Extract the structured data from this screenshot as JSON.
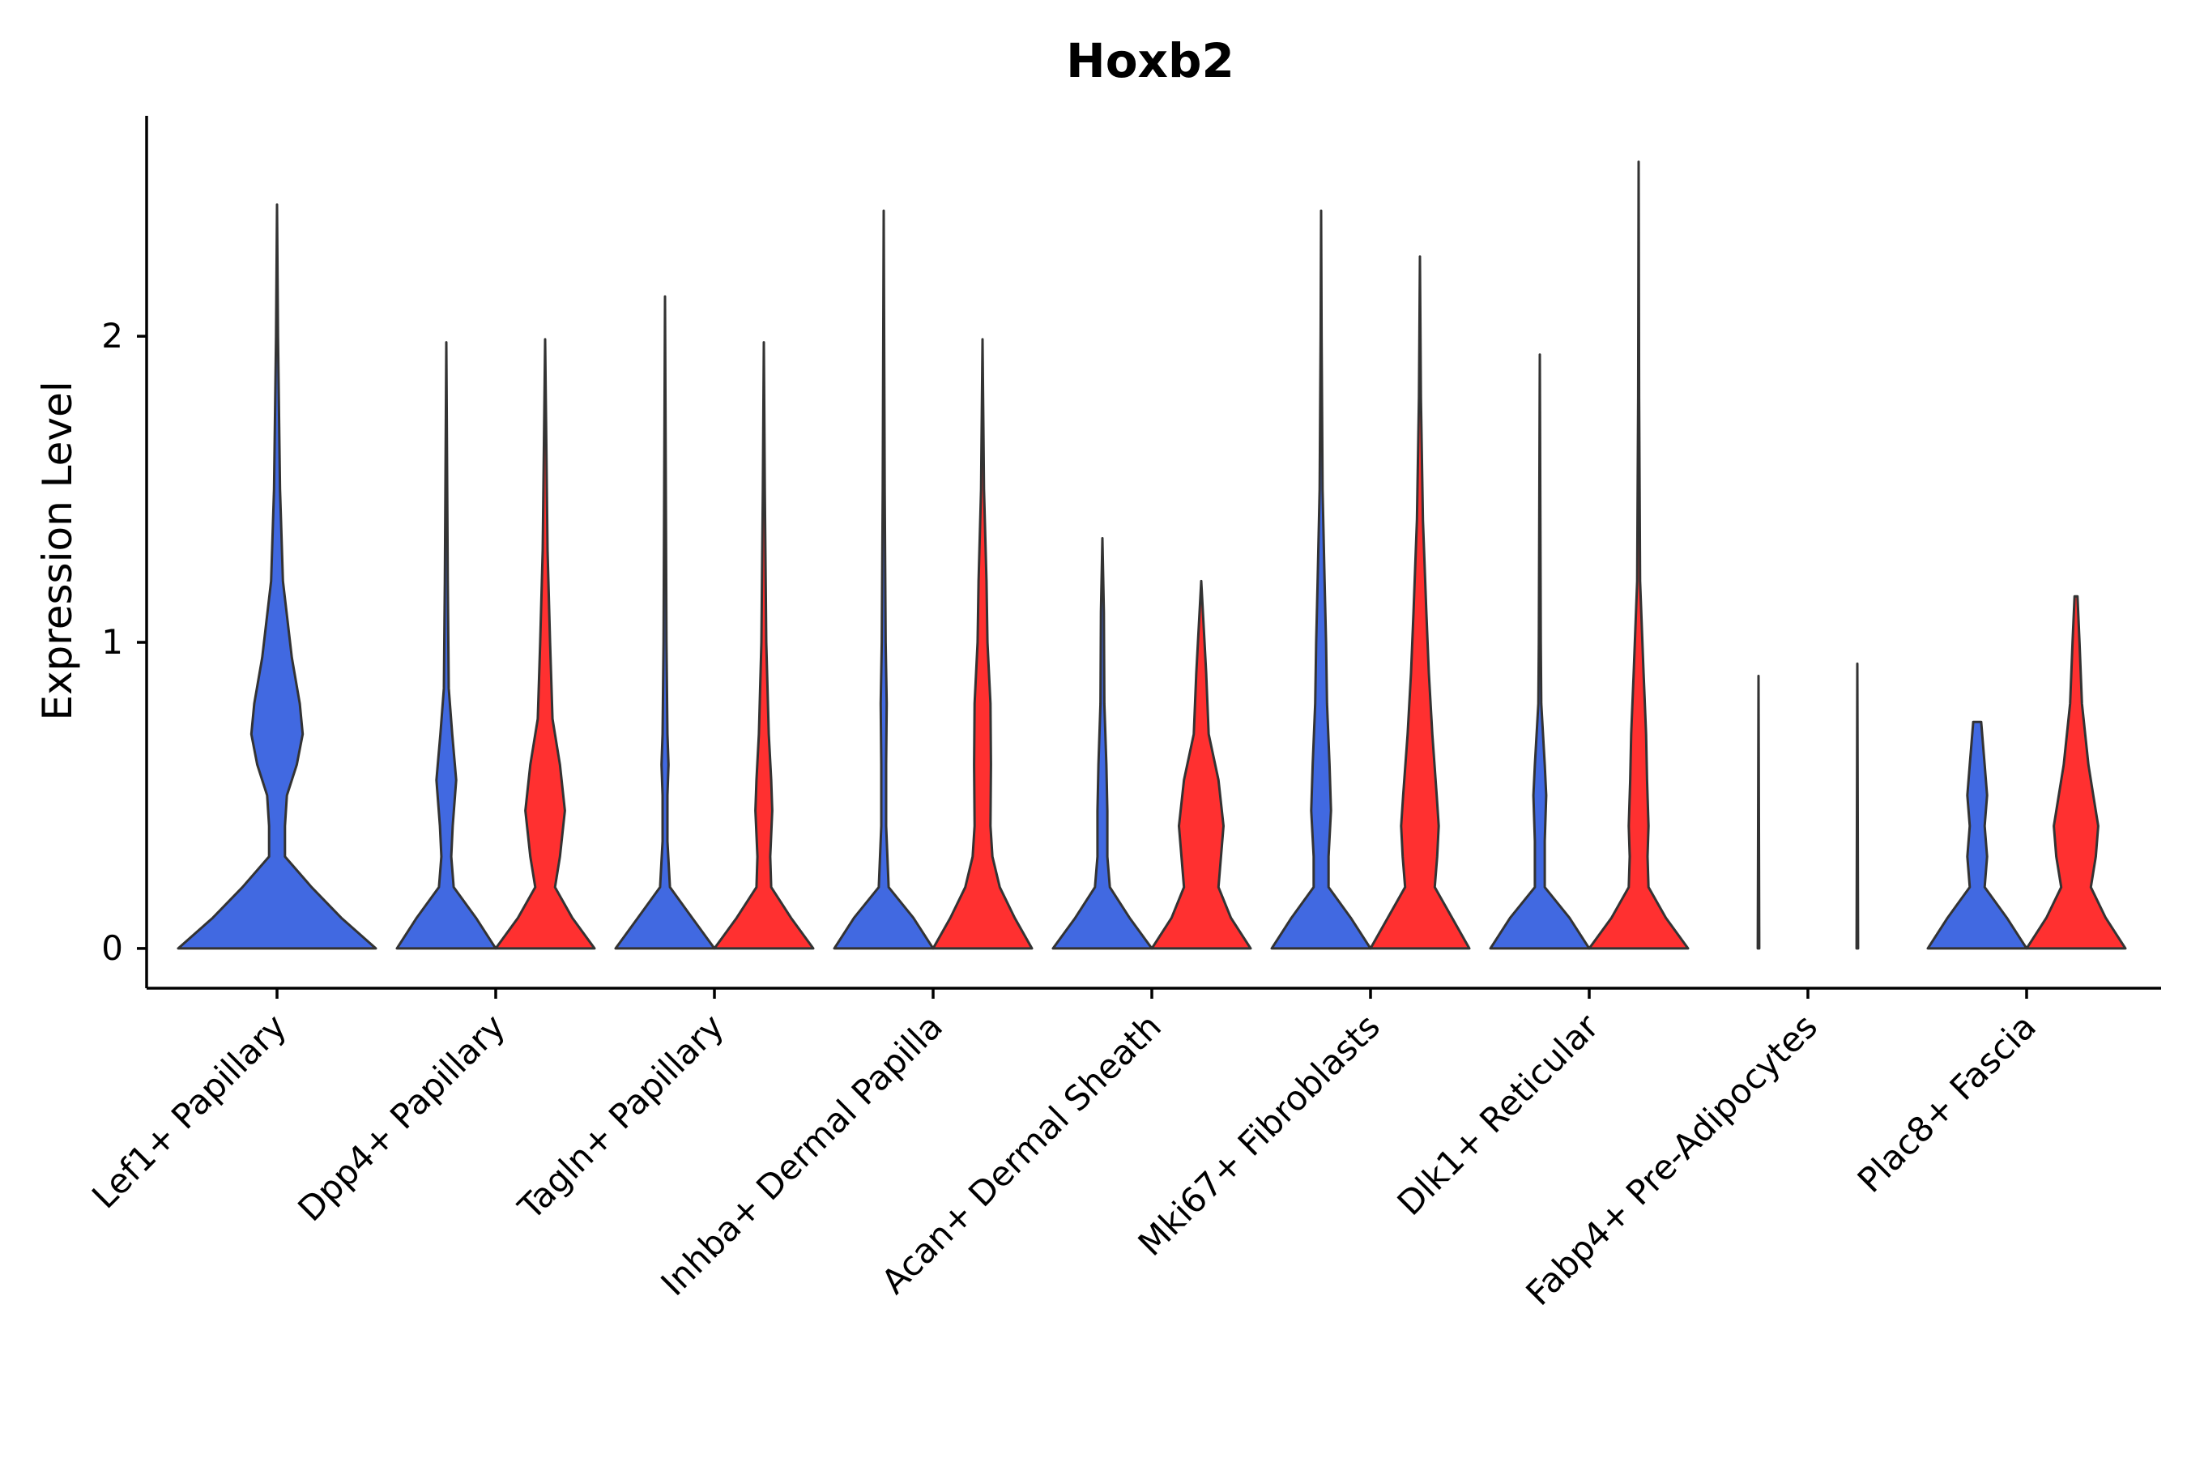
{
  "chart_data": {
    "type": "violin",
    "title": "Hoxb2",
    "xlabel": "",
    "ylabel": "Expression Level",
    "ylim": [
      -0.13,
      2.72
    ],
    "yticks": [
      0,
      1,
      2
    ],
    "legend": "none",
    "grid": false,
    "colors": {
      "group_a": "#4169e1",
      "group_b": "#ff3030",
      "outline": "#333333"
    },
    "categories": [
      "Lef1+ Papillary",
      "Dpp4+ Papillary",
      "Tagln+ Papillary",
      "Inhba+ Dermal Papilla",
      "Acan+ Dermal Sheath",
      "Mki67+ Fibroblasts",
      "Dlk1+ Reticular",
      "Fabp4+ Pre-Adipocytes",
      "Plac8+ Fascia"
    ],
    "series": [
      {
        "name": "group_a",
        "max": [
          2.43,
          1.98,
          2.13,
          2.41,
          1.34,
          2.41,
          1.94,
          0.89,
          0.74
        ],
        "profiles": [
          [
            [
              0,
              1.0
            ],
            [
              0.1,
              0.65
            ],
            [
              0.2,
              0.35
            ],
            [
              0.3,
              0.08
            ],
            [
              0.4,
              0.08
            ],
            [
              0.5,
              0.1
            ],
            [
              0.6,
              0.2
            ],
            [
              0.7,
              0.26
            ],
            [
              0.8,
              0.23
            ],
            [
              0.95,
              0.15
            ],
            [
              1.2,
              0.06
            ],
            [
              1.5,
              0.03
            ],
            [
              2.0,
              0.01
            ],
            [
              2.43,
              0.0
            ]
          ],
          [
            [
              0,
              1.0
            ],
            [
              0.1,
              0.6
            ],
            [
              0.2,
              0.15
            ],
            [
              0.3,
              0.1
            ],
            [
              0.4,
              0.13
            ],
            [
              0.55,
              0.2
            ],
            [
              0.7,
              0.12
            ],
            [
              0.85,
              0.05
            ],
            [
              1.2,
              0.03
            ],
            [
              1.98,
              0.0
            ]
          ],
          [
            [
              0,
              1.0
            ],
            [
              0.1,
              0.55
            ],
            [
              0.2,
              0.1
            ],
            [
              0.35,
              0.05
            ],
            [
              0.5,
              0.05
            ],
            [
              0.6,
              0.07
            ],
            [
              0.7,
              0.05
            ],
            [
              1.0,
              0.03
            ],
            [
              2.13,
              0.0
            ]
          ],
          [
            [
              0,
              1.0
            ],
            [
              0.1,
              0.6
            ],
            [
              0.2,
              0.1
            ],
            [
              0.4,
              0.05
            ],
            [
              0.6,
              0.05
            ],
            [
              0.8,
              0.06
            ],
            [
              1.0,
              0.04
            ],
            [
              1.5,
              0.02
            ],
            [
              2.41,
              0.0
            ]
          ],
          [
            [
              0,
              1.0
            ],
            [
              0.1,
              0.55
            ],
            [
              0.2,
              0.15
            ],
            [
              0.3,
              0.1
            ],
            [
              0.45,
              0.1
            ],
            [
              0.6,
              0.08
            ],
            [
              0.8,
              0.04
            ],
            [
              1.1,
              0.03
            ],
            [
              1.34,
              0.0
            ]
          ],
          [
            [
              0,
              1.0
            ],
            [
              0.1,
              0.6
            ],
            [
              0.2,
              0.15
            ],
            [
              0.3,
              0.15
            ],
            [
              0.45,
              0.2
            ],
            [
              0.6,
              0.17
            ],
            [
              0.8,
              0.12
            ],
            [
              1.0,
              0.1
            ],
            [
              1.2,
              0.07
            ],
            [
              1.5,
              0.03
            ],
            [
              2.0,
              0.01
            ],
            [
              2.41,
              0.0
            ]
          ],
          [
            [
              0,
              1.0
            ],
            [
              0.1,
              0.6
            ],
            [
              0.2,
              0.1
            ],
            [
              0.35,
              0.1
            ],
            [
              0.5,
              0.13
            ],
            [
              0.6,
              0.1
            ],
            [
              0.8,
              0.03
            ],
            [
              1.0,
              0.02
            ],
            [
              1.94,
              0.0
            ]
          ],
          [
            [
              0,
              0.015
            ],
            [
              0.89,
              0.0
            ]
          ],
          [
            [
              0,
              1.0
            ],
            [
              0.1,
              0.6
            ],
            [
              0.2,
              0.15
            ],
            [
              0.3,
              0.2
            ],
            [
              0.4,
              0.15
            ],
            [
              0.5,
              0.2
            ],
            [
              0.6,
              0.15
            ],
            [
              0.74,
              0.08
            ]
          ]
        ]
      },
      {
        "name": "group_b",
        "max": [
          null,
          1.99,
          1.98,
          1.99,
          1.2,
          2.26,
          2.57,
          0.93,
          1.15
        ],
        "profiles": [
          null,
          [
            [
              0,
              1.0
            ],
            [
              0.1,
              0.55
            ],
            [
              0.2,
              0.2
            ],
            [
              0.3,
              0.3
            ],
            [
              0.45,
              0.4
            ],
            [
              0.6,
              0.3
            ],
            [
              0.75,
              0.15
            ],
            [
              1.0,
              0.1
            ],
            [
              1.3,
              0.05
            ],
            [
              1.99,
              0.0
            ]
          ],
          [
            [
              0,
              1.0
            ],
            [
              0.1,
              0.55
            ],
            [
              0.2,
              0.15
            ],
            [
              0.3,
              0.13
            ],
            [
              0.45,
              0.17
            ],
            [
              0.55,
              0.15
            ],
            [
              0.7,
              0.1
            ],
            [
              1.0,
              0.05
            ],
            [
              1.5,
              0.02
            ],
            [
              1.98,
              0.0
            ]
          ],
          [
            [
              0,
              1.0
            ],
            [
              0.1,
              0.65
            ],
            [
              0.2,
              0.35
            ],
            [
              0.3,
              0.2
            ],
            [
              0.4,
              0.16
            ],
            [
              0.6,
              0.17
            ],
            [
              0.8,
              0.16
            ],
            [
              1.0,
              0.1
            ],
            [
              1.2,
              0.08
            ],
            [
              1.5,
              0.03
            ],
            [
              1.99,
              0.0
            ]
          ],
          [
            [
              0,
              1.0
            ],
            [
              0.1,
              0.6
            ],
            [
              0.2,
              0.35
            ],
            [
              0.3,
              0.4
            ],
            [
              0.4,
              0.45
            ],
            [
              0.55,
              0.35
            ],
            [
              0.7,
              0.15
            ],
            [
              0.9,
              0.1
            ],
            [
              1.2,
              0.0
            ]
          ],
          [
            [
              0,
              1.0
            ],
            [
              0.1,
              0.65
            ],
            [
              0.2,
              0.3
            ],
            [
              0.3,
              0.35
            ],
            [
              0.4,
              0.38
            ],
            [
              0.5,
              0.34
            ],
            [
              0.7,
              0.25
            ],
            [
              0.9,
              0.18
            ],
            [
              1.1,
              0.13
            ],
            [
              1.4,
              0.06
            ],
            [
              1.8,
              0.02
            ],
            [
              2.26,
              0.0
            ]
          ],
          [
            [
              0,
              1.0
            ],
            [
              0.1,
              0.55
            ],
            [
              0.2,
              0.2
            ],
            [
              0.3,
              0.18
            ],
            [
              0.4,
              0.2
            ],
            [
              0.55,
              0.17
            ],
            [
              0.7,
              0.15
            ],
            [
              0.9,
              0.1
            ],
            [
              1.2,
              0.03
            ],
            [
              1.8,
              0.01
            ],
            [
              2.57,
              0.0
            ]
          ],
          [
            [
              0,
              0.015
            ],
            [
              0.93,
              0.0
            ]
          ],
          [
            [
              0,
              1.0
            ],
            [
              0.1,
              0.6
            ],
            [
              0.2,
              0.3
            ],
            [
              0.3,
              0.4
            ],
            [
              0.4,
              0.45
            ],
            [
              0.5,
              0.35
            ],
            [
              0.6,
              0.25
            ],
            [
              0.8,
              0.12
            ],
            [
              1.0,
              0.07
            ],
            [
              1.15,
              0.03
            ]
          ]
        ]
      }
    ]
  }
}
